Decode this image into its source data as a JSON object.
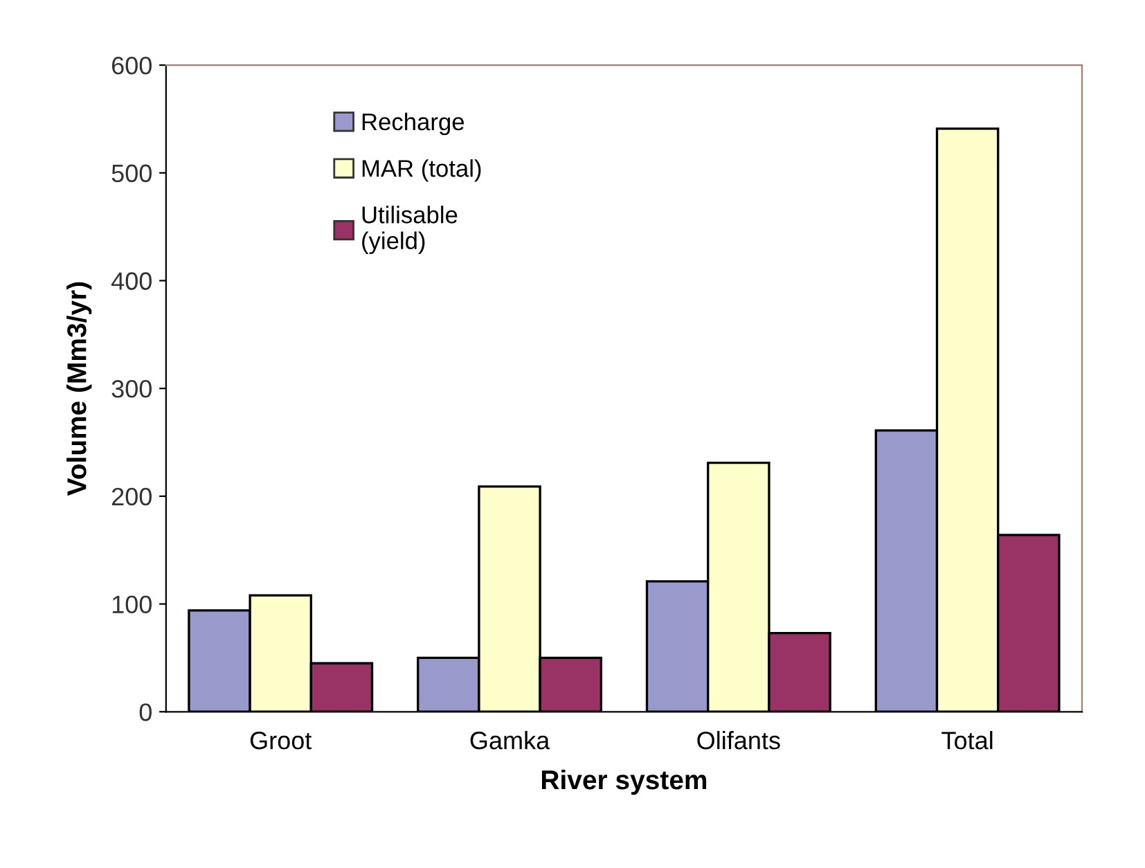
{
  "chart_data": {
    "type": "bar",
    "xlabel": "River system",
    "ylabel": "Volume (Mm3/yr)",
    "categories": [
      "Groot",
      "Gamka",
      "Olifants",
      "Total"
    ],
    "series": [
      {
        "name": "Recharge",
        "color": "#9999cc",
        "values": [
          94,
          50,
          121,
          261
        ]
      },
      {
        "name": "MAR (total)",
        "color": "#ffffcc",
        "values": [
          108,
          209,
          231,
          541
        ]
      },
      {
        "name": "Utilisable\n(yield)",
        "color": "#993366",
        "values": [
          45,
          50,
          73,
          164
        ]
      }
    ],
    "ylim": [
      0,
      600
    ],
    "yticks": [
      0,
      100,
      200,
      300,
      400,
      500,
      600
    ],
    "grid": false,
    "legend": "top left"
  }
}
